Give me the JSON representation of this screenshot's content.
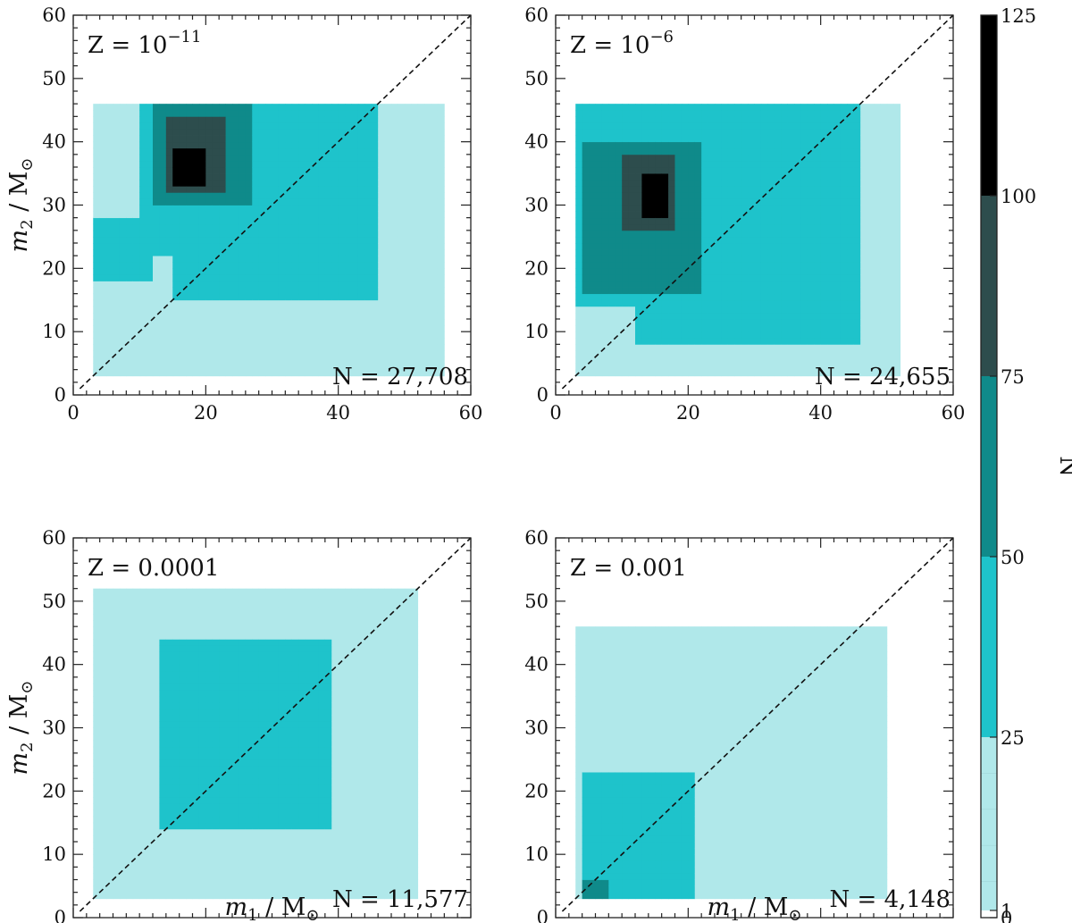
{
  "chart_data": {
    "type": "heatmap",
    "colors": {
      "empty": "#ffffff",
      "bin_1_25": "#b0e8ea",
      "bin_25_50": "#1ec3cb",
      "bin_50_75": "#0f8a8a",
      "bin_75_100": "#2d4d4d",
      "bin_100_125": "#000000"
    },
    "colorbar": {
      "label": "N",
      "ticks": [
        "0",
        "1",
        "25",
        "50",
        "75",
        "100",
        "125"
      ],
      "bounds": [
        0,
        1,
        25,
        50,
        75,
        100,
        125
      ]
    },
    "x_axis": {
      "label_symbol": "m",
      "label_subscript": "1",
      "label_rest": " / M",
      "label_sun": "⊙",
      "ticks": [
        "0",
        "20",
        "40",
        "60"
      ],
      "range": [
        0,
        60
      ]
    },
    "y_axis": {
      "label_symbol": "m",
      "label_subscript": "2",
      "label_rest": " / M",
      "label_sun": "⊙",
      "ticks": [
        "0",
        "10",
        "20",
        "30",
        "40",
        "50",
        "60"
      ],
      "range": [
        0,
        60
      ]
    },
    "panels": [
      {
        "metallicity_base": "Z = 10",
        "metallicity_exp": "−11",
        "count": "N = 27,708",
        "bin_size": 1,
        "regions": [
          {
            "level": 1,
            "m1": [
              3,
              56
            ],
            "m2": [
              3,
              46
            ]
          },
          {
            "level": 2,
            "m1": [
              10,
              33
            ],
            "m2": [
              22,
              46
            ]
          },
          {
            "level": 2,
            "m1": [
              3,
              12
            ],
            "m2": [
              18,
              28
            ]
          },
          {
            "level": 2,
            "m1": [
              15,
              46
            ],
            "m2": [
              15,
              46
            ]
          },
          {
            "level": 3,
            "m1": [
              12,
              27
            ],
            "m2": [
              30,
              46
            ]
          },
          {
            "level": 4,
            "m1": [
              14,
              23
            ],
            "m2": [
              32,
              44
            ]
          },
          {
            "level": 5,
            "m1": [
              15,
              20
            ],
            "m2": [
              33,
              39
            ]
          }
        ]
      },
      {
        "metallicity_base": "Z = 10",
        "metallicity_exp": "−6",
        "count": "N = 24,655",
        "bin_size": 1,
        "regions": [
          {
            "level": 1,
            "m1": [
              3,
              52
            ],
            "m2": [
              3,
              46
            ]
          },
          {
            "level": 2,
            "m1": [
              3,
              36
            ],
            "m2": [
              14,
              46
            ]
          },
          {
            "level": 2,
            "m1": [
              12,
              46
            ],
            "m2": [
              8,
              46
            ]
          },
          {
            "level": 3,
            "m1": [
              4,
              22
            ],
            "m2": [
              16,
              40
            ]
          },
          {
            "level": 4,
            "m1": [
              10,
              18
            ],
            "m2": [
              26,
              38
            ]
          },
          {
            "level": 5,
            "m1": [
              13,
              17
            ],
            "m2": [
              28,
              35
            ]
          }
        ]
      },
      {
        "metallicity_base": "Z = 0.0001",
        "metallicity_exp": "",
        "count": "N = 11,577",
        "bin_size": 1,
        "regions": [
          {
            "level": 1,
            "m1": [
              3,
              52
            ],
            "m2": [
              3,
              52
            ]
          },
          {
            "level": 2,
            "m1": [
              13,
              39
            ],
            "m2": [
              14,
              44
            ]
          }
        ]
      },
      {
        "metallicity_base": "Z = 0.001",
        "metallicity_exp": "",
        "count": "N = 4,148",
        "bin_size": 1,
        "regions": [
          {
            "level": 1,
            "m1": [
              3,
              50
            ],
            "m2": [
              3,
              46
            ]
          },
          {
            "level": 2,
            "m1": [
              4,
              21
            ],
            "m2": [
              3,
              23
            ]
          },
          {
            "level": 3,
            "m1": [
              4,
              8
            ],
            "m2": [
              3,
              6
            ]
          }
        ]
      }
    ]
  }
}
